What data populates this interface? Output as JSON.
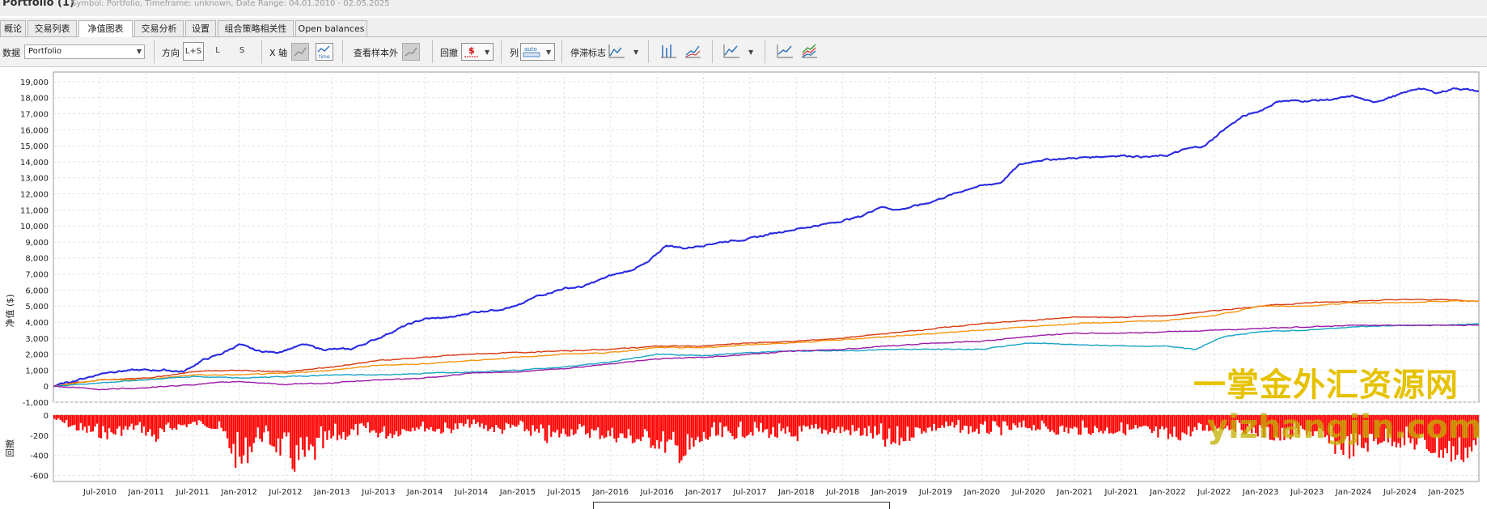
{
  "window": {
    "title": "Portfolio (1)",
    "subtitle": "Symbol: Portfolio, Timeframe: unknown, Date Range: 04.01.2010 - 02.05.2025"
  },
  "tabs": [
    {
      "label": "概论",
      "active": false
    },
    {
      "label": "交易列表",
      "active": false
    },
    {
      "label": "净值图表",
      "active": true
    },
    {
      "label": "交易分析",
      "active": false
    },
    {
      "label": "设置",
      "active": false
    },
    {
      "label": "组合策略相关性",
      "active": false
    },
    {
      "label": "Open balances",
      "active": false
    }
  ],
  "toolbar": {
    "data_label": "数据",
    "data_select": "Portfolio",
    "direction_label": "方向",
    "dir_ls": "L+S",
    "dir_l": "L",
    "dir_s": "S",
    "xaxis_label": "X 轴",
    "xaxis_time": "time",
    "oos_label": "查看样本外",
    "drawdown_label": "回撤",
    "drawdown_icon": "$",
    "columns_label": "列",
    "columns_icon": "auto",
    "stagnation_label": "停滞标志"
  },
  "icons": [
    "dropdown-arrow-icon",
    "x-axis-trades-icon",
    "x-axis-time-icon",
    "oos-icon",
    "drawdown-dollar-icon",
    "columns-auto-icon",
    "stagnation-icon",
    "chart-bars-icon",
    "chart-line-icon",
    "chart-compare-icon",
    "chart-single-icon",
    "chart-multi-icon"
  ],
  "chart_data": {
    "type": "line",
    "ylabel": "净值 ($)",
    "ylabel_drawdown": "回撤",
    "y_ticks": [
      "19,000",
      "18,000",
      "17,000",
      "16,000",
      "15,000",
      "14,000",
      "13,000",
      "12,000",
      "11,000",
      "10,000",
      "9,000",
      "8,000",
      "7,000",
      "6,000",
      "5,000",
      "4,000",
      "3,000",
      "2,000",
      "1,000",
      "0",
      "-1,000"
    ],
    "ylim": [
      -1000,
      19600
    ],
    "dd_ticks": [
      "0",
      "-200",
      "-400",
      "-600"
    ],
    "dd_ylim": [
      -660,
      0
    ],
    "x_ticks": [
      "Jul-2010",
      "Jan-2011",
      "Jul-2011",
      "Jan-2012",
      "Jul-2012",
      "Jan-2013",
      "Jul-2013",
      "Jan-2014",
      "Jul-2014",
      "Jan-2015",
      "Jul-2015",
      "Jan-2016",
      "Jul-2016",
      "Jan-2017",
      "Jul-2017",
      "Jan-2018",
      "Jul-2018",
      "Jan-2019",
      "Jul-2019",
      "Jan-2020",
      "Jul-2020",
      "Jan-2021",
      "Jul-2021",
      "Jan-2022",
      "Jul-2022",
      "Jan-2023",
      "Jul-2023",
      "Jan-2024",
      "Jul-2024",
      "Jan-2025"
    ],
    "x_range": [
      2010.0,
      2025.35
    ],
    "grid": true,
    "series": [
      {
        "color": "#2a2adf",
        "points": [
          [
            2010.0,
            0
          ],
          [
            2010.3,
            450
          ],
          [
            2010.6,
            900
          ],
          [
            2010.9,
            1000
          ],
          [
            2011.2,
            1000
          ],
          [
            2011.4,
            900
          ],
          [
            2011.6,
            1600
          ],
          [
            2011.8,
            2000
          ],
          [
            2012.0,
            2600
          ],
          [
            2012.2,
            2200
          ],
          [
            2012.4,
            2100
          ],
          [
            2012.7,
            2600
          ],
          [
            2012.9,
            2300
          ],
          [
            2013.2,
            2300
          ],
          [
            2013.5,
            3000
          ],
          [
            2013.8,
            3800
          ],
          [
            2014.0,
            4200
          ],
          [
            2014.3,
            4300
          ],
          [
            2014.5,
            4600
          ],
          [
            2014.8,
            4800
          ],
          [
            2015.0,
            5000
          ],
          [
            2015.2,
            5600
          ],
          [
            2015.5,
            6100
          ],
          [
            2015.7,
            6200
          ],
          [
            2016.0,
            6900
          ],
          [
            2016.2,
            7200
          ],
          [
            2016.4,
            7700
          ],
          [
            2016.6,
            8800
          ],
          [
            2016.8,
            8600
          ],
          [
            2017.0,
            8800
          ],
          [
            2017.2,
            9000
          ],
          [
            2017.5,
            9200
          ],
          [
            2017.8,
            9600
          ],
          [
            2018.1,
            9900
          ],
          [
            2018.4,
            10200
          ],
          [
            2018.7,
            10600
          ],
          [
            2018.9,
            11200
          ],
          [
            2019.1,
            11000
          ],
          [
            2019.4,
            11400
          ],
          [
            2019.7,
            12000
          ],
          [
            2019.9,
            12400
          ],
          [
            2020.2,
            12700
          ],
          [
            2020.4,
            13800
          ],
          [
            2020.6,
            14100
          ],
          [
            2020.9,
            14200
          ],
          [
            2021.2,
            14300
          ],
          [
            2021.5,
            14400
          ],
          [
            2021.8,
            14300
          ],
          [
            2022.0,
            14400
          ],
          [
            2022.2,
            14800
          ],
          [
            2022.4,
            15000
          ],
          [
            2022.6,
            16000
          ],
          [
            2022.8,
            16800
          ],
          [
            2023.0,
            17200
          ],
          [
            2023.2,
            17800
          ],
          [
            2023.5,
            17800
          ],
          [
            2023.8,
            17900
          ],
          [
            2024.0,
            18100
          ],
          [
            2024.2,
            17700
          ],
          [
            2024.5,
            18200
          ],
          [
            2024.7,
            18600
          ],
          [
            2024.9,
            18300
          ],
          [
            2025.1,
            18600
          ],
          [
            2025.35,
            18400
          ]
        ]
      },
      {
        "color": "#d83a12",
        "points": [
          [
            2010.0,
            0
          ],
          [
            2010.5,
            400
          ],
          [
            2011.0,
            500
          ],
          [
            2011.5,
            900
          ],
          [
            2012.0,
            1000
          ],
          [
            2012.5,
            900
          ],
          [
            2013.0,
            1200
          ],
          [
            2013.5,
            1600
          ],
          [
            2014.0,
            1800
          ],
          [
            2014.5,
            2000
          ],
          [
            2015.0,
            2100
          ],
          [
            2015.5,
            2200
          ],
          [
            2016.0,
            2300
          ],
          [
            2016.5,
            2500
          ],
          [
            2017.0,
            2500
          ],
          [
            2017.5,
            2700
          ],
          [
            2018.0,
            2800
          ],
          [
            2018.5,
            3000
          ],
          [
            2019.0,
            3300
          ],
          [
            2019.5,
            3600
          ],
          [
            2020.0,
            3900
          ],
          [
            2020.5,
            4100
          ],
          [
            2021.0,
            4300
          ],
          [
            2021.5,
            4300
          ],
          [
            2022.0,
            4400
          ],
          [
            2022.5,
            4700
          ],
          [
            2023.0,
            5000
          ],
          [
            2023.5,
            5200
          ],
          [
            2024.0,
            5300
          ],
          [
            2024.5,
            5400
          ],
          [
            2025.0,
            5400
          ],
          [
            2025.35,
            5300
          ]
        ]
      },
      {
        "color": "#f5950f",
        "points": [
          [
            2010.0,
            0
          ],
          [
            2010.5,
            400
          ],
          [
            2011.0,
            400
          ],
          [
            2011.5,
            700
          ],
          [
            2012.0,
            700
          ],
          [
            2012.5,
            800
          ],
          [
            2013.0,
            1000
          ],
          [
            2013.5,
            1300
          ],
          [
            2014.0,
            1400
          ],
          [
            2014.5,
            1600
          ],
          [
            2015.0,
            1800
          ],
          [
            2015.5,
            2000
          ],
          [
            2016.0,
            2100
          ],
          [
            2016.5,
            2400
          ],
          [
            2017.0,
            2400
          ],
          [
            2017.5,
            2600
          ],
          [
            2018.0,
            2700
          ],
          [
            2018.5,
            2900
          ],
          [
            2019.0,
            3100
          ],
          [
            2019.5,
            3300
          ],
          [
            2020.0,
            3500
          ],
          [
            2020.5,
            3700
          ],
          [
            2021.0,
            3900
          ],
          [
            2021.5,
            4000
          ],
          [
            2022.0,
            4100
          ],
          [
            2022.5,
            4400
          ],
          [
            2023.0,
            5000
          ],
          [
            2023.5,
            5000
          ],
          [
            2024.0,
            5200
          ],
          [
            2024.5,
            5200
          ],
          [
            2025.0,
            5300
          ],
          [
            2025.35,
            5300
          ]
        ]
      },
      {
        "color": "#16a3c4",
        "points": [
          [
            2010.0,
            0
          ],
          [
            2010.5,
            200
          ],
          [
            2011.0,
            400
          ],
          [
            2011.5,
            600
          ],
          [
            2012.0,
            500
          ],
          [
            2012.5,
            600
          ],
          [
            2013.0,
            700
          ],
          [
            2013.5,
            700
          ],
          [
            2014.0,
            800
          ],
          [
            2014.5,
            900
          ],
          [
            2015.0,
            1000
          ],
          [
            2015.5,
            1200
          ],
          [
            2016.0,
            1500
          ],
          [
            2016.5,
            2000
          ],
          [
            2017.0,
            1900
          ],
          [
            2017.5,
            2100
          ],
          [
            2018.0,
            2200
          ],
          [
            2018.5,
            2200
          ],
          [
            2019.0,
            2300
          ],
          [
            2019.5,
            2300
          ],
          [
            2020.0,
            2300
          ],
          [
            2020.5,
            2700
          ],
          [
            2021.0,
            2600
          ],
          [
            2021.5,
            2500
          ],
          [
            2022.0,
            2500
          ],
          [
            2022.3,
            2300
          ],
          [
            2022.6,
            3100
          ],
          [
            2023.0,
            3400
          ],
          [
            2023.5,
            3500
          ],
          [
            2024.0,
            3700
          ],
          [
            2024.5,
            3800
          ],
          [
            2025.0,
            3800
          ],
          [
            2025.35,
            3900
          ]
        ]
      },
      {
        "color": "#9a1aa6",
        "points": [
          [
            2010.0,
            0
          ],
          [
            2010.5,
            -200
          ],
          [
            2011.0,
            -100
          ],
          [
            2011.5,
            100
          ],
          [
            2012.0,
            300
          ],
          [
            2012.5,
            100
          ],
          [
            2013.0,
            200
          ],
          [
            2013.5,
            400
          ],
          [
            2014.0,
            500
          ],
          [
            2014.5,
            800
          ],
          [
            2015.0,
            900
          ],
          [
            2015.5,
            1100
          ],
          [
            2016.0,
            1400
          ],
          [
            2016.5,
            1700
          ],
          [
            2017.0,
            1800
          ],
          [
            2017.5,
            2000
          ],
          [
            2018.0,
            2200
          ],
          [
            2018.5,
            2300
          ],
          [
            2019.0,
            2500
          ],
          [
            2019.5,
            2700
          ],
          [
            2020.0,
            2800
          ],
          [
            2020.5,
            3100
          ],
          [
            2021.0,
            3300
          ],
          [
            2021.5,
            3300
          ],
          [
            2022.0,
            3400
          ],
          [
            2022.5,
            3500
          ],
          [
            2023.0,
            3600
          ],
          [
            2023.5,
            3700
          ],
          [
            2024.0,
            3800
          ],
          [
            2024.5,
            3800
          ],
          [
            2025.0,
            3800
          ],
          [
            2025.35,
            3800
          ]
        ]
      }
    ],
    "drawdown_envelope": [
      [
        2010.0,
        -50
      ],
      [
        2010.3,
        -200
      ],
      [
        2010.6,
        -250
      ],
      [
        2010.9,
        -150
      ],
      [
        2011.1,
        -300
      ],
      [
        2011.3,
        -150
      ],
      [
        2011.6,
        -100
      ],
      [
        2011.8,
        -200
      ],
      [
        2012.0,
        -640
      ],
      [
        2012.2,
        -250
      ],
      [
        2012.4,
        -400
      ],
      [
        2012.6,
        -620
      ],
      [
        2012.8,
        -500
      ],
      [
        2013.0,
        -300
      ],
      [
        2013.3,
        -200
      ],
      [
        2013.6,
        -250
      ],
      [
        2013.9,
        -150
      ],
      [
        2014.2,
        -200
      ],
      [
        2014.5,
        -120
      ],
      [
        2014.8,
        -200
      ],
      [
        2015.0,
        -150
      ],
      [
        2015.3,
        -300
      ],
      [
        2015.6,
        -200
      ],
      [
        2015.9,
        -250
      ],
      [
        2016.2,
        -300
      ],
      [
        2016.5,
        -350
      ],
      [
        2016.8,
        -520
      ],
      [
        2017.0,
        -300
      ],
      [
        2017.3,
        -250
      ],
      [
        2017.6,
        -200
      ],
      [
        2017.9,
        -300
      ],
      [
        2018.2,
        -200
      ],
      [
        2018.5,
        -200
      ],
      [
        2018.8,
        -250
      ],
      [
        2019.0,
        -400
      ],
      [
        2019.3,
        -200
      ],
      [
        2019.6,
        -150
      ],
      [
        2019.9,
        -200
      ],
      [
        2020.2,
        -200
      ],
      [
        2020.5,
        -150
      ],
      [
        2020.8,
        -200
      ],
      [
        2021.1,
        -200
      ],
      [
        2021.4,
        -200
      ],
      [
        2021.7,
        -200
      ],
      [
        2022.0,
        -300
      ],
      [
        2022.3,
        -200
      ],
      [
        2022.6,
        -150
      ],
      [
        2022.9,
        -200
      ],
      [
        2023.2,
        -300
      ],
      [
        2023.5,
        -200
      ],
      [
        2023.8,
        -400
      ],
      [
        2024.0,
        -450
      ],
      [
        2024.3,
        -300
      ],
      [
        2024.6,
        -350
      ],
      [
        2024.9,
        -450
      ],
      [
        2025.1,
        -520
      ],
      [
        2025.35,
        -400
      ]
    ]
  },
  "watermark": {
    "line1": "一掌金外汇资源网",
    "line2": "yizhangjin.com"
  }
}
